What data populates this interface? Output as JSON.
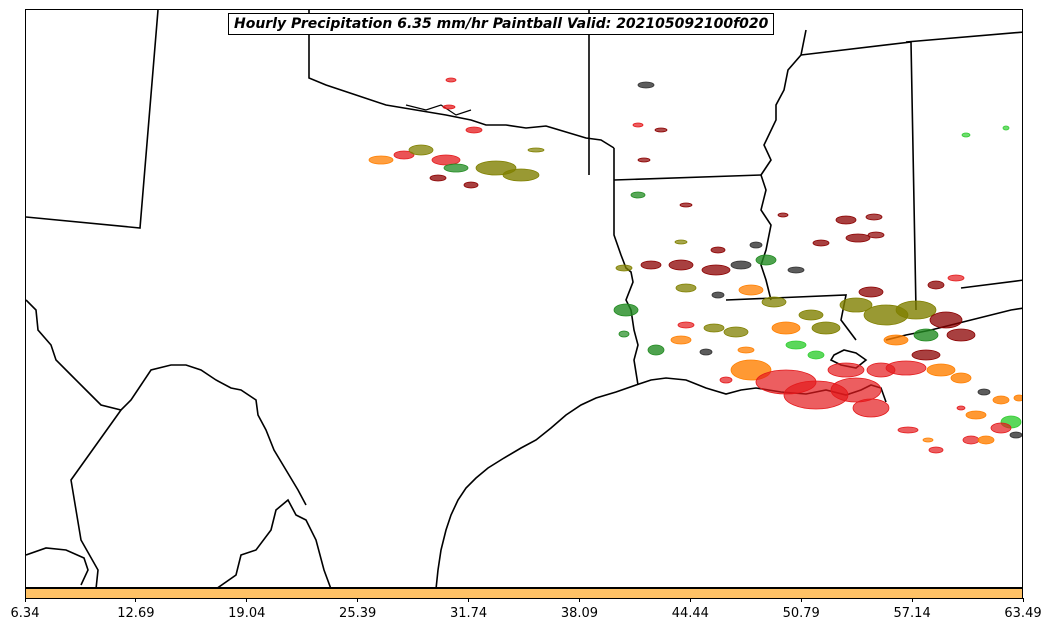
{
  "title": "Hourly Precipitation 6.35 mm/hr Paintball Valid: 202105092100f020",
  "colorbar": {
    "fill_color": "#ffc266",
    "tick_labels": [
      "6.34",
      "12.69",
      "19.04",
      "25.39",
      "31.74",
      "38.09",
      "44.44",
      "50.79",
      "57.14",
      "63.49"
    ]
  },
  "member_colors": [
    "#e41a1c",
    "#ff7f00",
    "#808000",
    "#228b22",
    "#8b0000",
    "#32cd32",
    "#333333"
  ]
}
